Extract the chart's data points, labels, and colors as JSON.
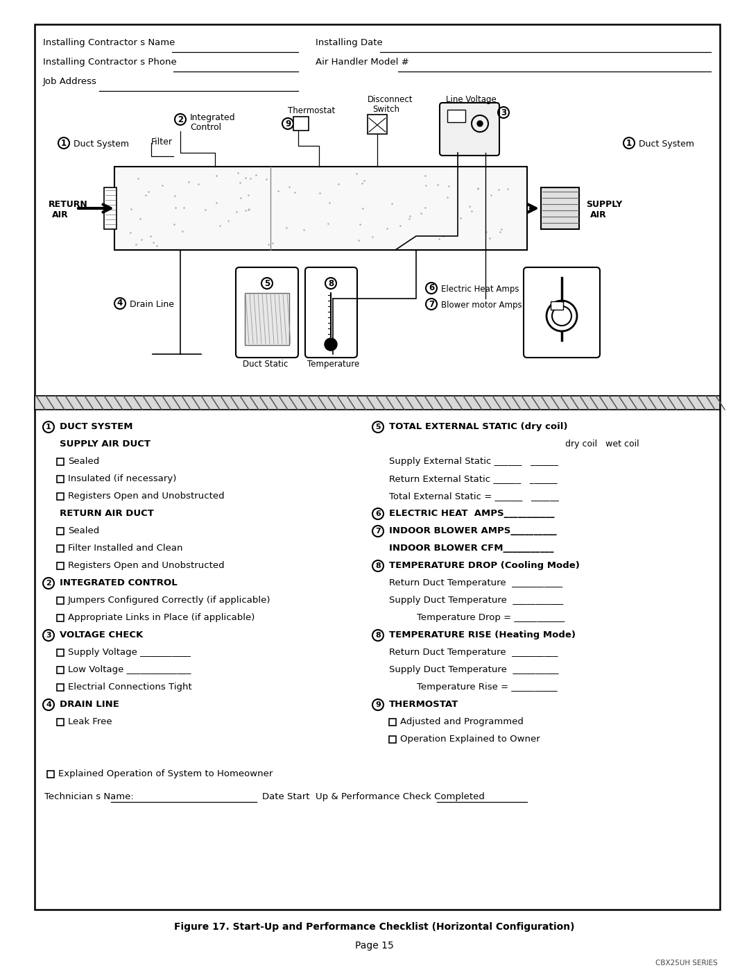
{
  "bg_color": "#ffffff",
  "border_color": "#000000",
  "title": "Figure 17. Start-Up and Performance Checklist (Horizontal Configuration)",
  "page_num": "Page 15",
  "series_label": "CBX25UH SERIES"
}
